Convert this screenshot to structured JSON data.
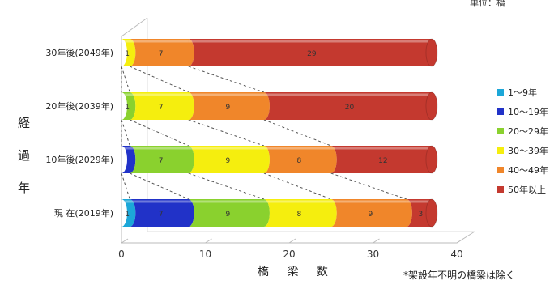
{
  "chart_data": {
    "type": "bar",
    "orientation": "horizontal",
    "stacked": true,
    "unit": "単位：橋",
    "ylabel": "経過年",
    "xlabel": "橋 梁 数",
    "note": "*架設年不明の橋梁は除く",
    "xlim": [
      0,
      40
    ],
    "xticks": [
      "0",
      "10",
      "20",
      "30",
      "40"
    ],
    "categories": [
      "30年後(2049年)",
      "20年後(2039年)",
      "10年後(2029年)",
      "現 在(2019年)"
    ],
    "series": [
      {
        "name": "1〜9年",
        "color": "#1ca7d8",
        "values": [
          0,
          0,
          0,
          1
        ]
      },
      {
        "name": "10〜19年",
        "color": "#2132c8",
        "values": [
          0,
          0,
          1,
          7
        ]
      },
      {
        "name": "20〜29年",
        "color": "#8ad12e",
        "values": [
          0,
          1,
          7,
          9
        ]
      },
      {
        "name": "30〜39年",
        "color": "#f5ee0e",
        "values": [
          1,
          7,
          9,
          8
        ]
      },
      {
        "name": "40〜49年",
        "color": "#f0862a",
        "values": [
          7,
          9,
          8,
          9
        ]
      },
      {
        "name": "50年以上",
        "color": "#c4392f",
        "values": [
          29,
          20,
          12,
          3
        ]
      }
    ],
    "data_labels": [
      [
        "",
        "",
        "",
        "1",
        "7",
        "29"
      ],
      [
        "",
        "",
        "1",
        "7",
        "9",
        "20"
      ],
      [
        "",
        "",
        "7",
        "9",
        "8",
        "12"
      ],
      [
        "1",
        "7",
        "9",
        "8",
        "9",
        "3"
      ]
    ],
    "grid": false,
    "legend_position": "right"
  }
}
